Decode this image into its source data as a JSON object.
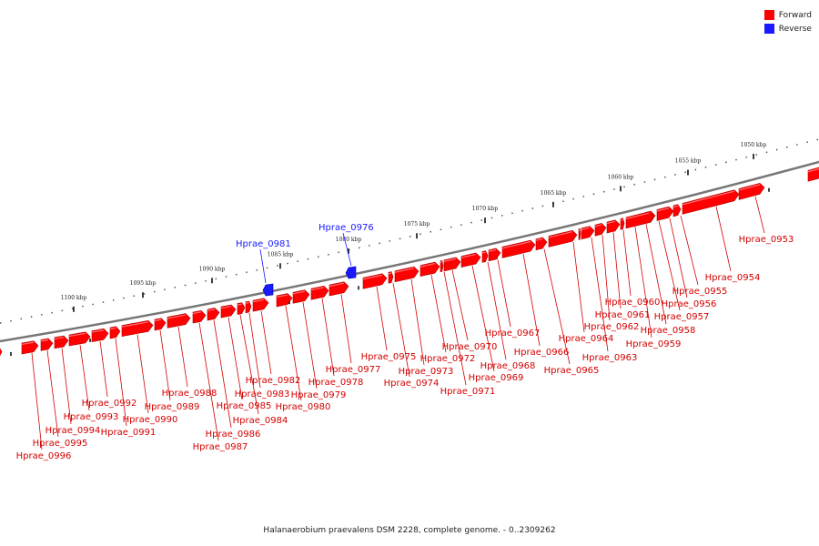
{
  "legend": {
    "forward_label": "Forward",
    "reverse_label": "Reverse",
    "forward_color": "#ff0000",
    "reverse_color": "#1a1aff"
  },
  "footer": {
    "caption": "Halanaerobium praevalens DSM 2228, complete genome. - 0..2309262"
  },
  "ruler": {
    "unit": "kbp",
    "ticks": [
      1050,
      1055,
      1060,
      1065,
      1070,
      1075,
      1080,
      1085,
      1090,
      1095,
      1100
    ]
  },
  "genes": [
    {
      "label": "Hprae_0953",
      "strand": "forward"
    },
    {
      "label": "Hprae_0954",
      "strand": "forward"
    },
    {
      "label": "Hprae_0955",
      "strand": "forward"
    },
    {
      "label": "Hprae_0956",
      "strand": "forward"
    },
    {
      "label": "Hprae_0957",
      "strand": "forward"
    },
    {
      "label": "Hprae_0958",
      "strand": "forward"
    },
    {
      "label": "Hprae_0959",
      "strand": "forward"
    },
    {
      "label": "Hprae_0960",
      "strand": "forward"
    },
    {
      "label": "Hprae_0961",
      "strand": "forward"
    },
    {
      "label": "Hprae_0962",
      "strand": "forward"
    },
    {
      "label": "Hprae_0963",
      "strand": "forward"
    },
    {
      "label": "Hprae_0964",
      "strand": "forward"
    },
    {
      "label": "Hprae_0965",
      "strand": "forward"
    },
    {
      "label": "Hprae_0966",
      "strand": "forward"
    },
    {
      "label": "Hprae_0967",
      "strand": "forward"
    },
    {
      "label": "Hprae_0968",
      "strand": "forward"
    },
    {
      "label": "Hprae_0969",
      "strand": "forward"
    },
    {
      "label": "Hprae_0970",
      "strand": "forward"
    },
    {
      "label": "Hprae_0971",
      "strand": "forward"
    },
    {
      "label": "Hprae_0972",
      "strand": "forward"
    },
    {
      "label": "Hprae_0973",
      "strand": "forward"
    },
    {
      "label": "Hprae_0974",
      "strand": "forward"
    },
    {
      "label": "Hprae_0975",
      "strand": "forward"
    },
    {
      "label": "Hprae_0976",
      "strand": "reverse"
    },
    {
      "label": "Hprae_0977",
      "strand": "forward"
    },
    {
      "label": "Hprae_0978",
      "strand": "forward"
    },
    {
      "label": "Hprae_0979",
      "strand": "forward"
    },
    {
      "label": "Hprae_0980",
      "strand": "forward"
    },
    {
      "label": "Hprae_0981",
      "strand": "reverse"
    },
    {
      "label": "Hprae_0982",
      "strand": "forward"
    },
    {
      "label": "Hprae_0983",
      "strand": "forward"
    },
    {
      "label": "Hprae_0984",
      "strand": "forward"
    },
    {
      "label": "Hprae_0985",
      "strand": "forward"
    },
    {
      "label": "Hprae_0986",
      "strand": "forward"
    },
    {
      "label": "Hprae_0987",
      "strand": "forward"
    },
    {
      "label": "Hprae_0988",
      "strand": "forward"
    },
    {
      "label": "Hprae_0989",
      "strand": "forward"
    },
    {
      "label": "Hprae_0990",
      "strand": "forward"
    },
    {
      "label": "Hprae_0991",
      "strand": "forward"
    },
    {
      "label": "Hprae_0992",
      "strand": "forward"
    },
    {
      "label": "Hprae_0993",
      "strand": "forward"
    },
    {
      "label": "Hprae_0994",
      "strand": "forward"
    },
    {
      "label": "Hprae_0995",
      "strand": "forward"
    },
    {
      "label": "Hprae_0996",
      "strand": "forward"
    }
  ]
}
